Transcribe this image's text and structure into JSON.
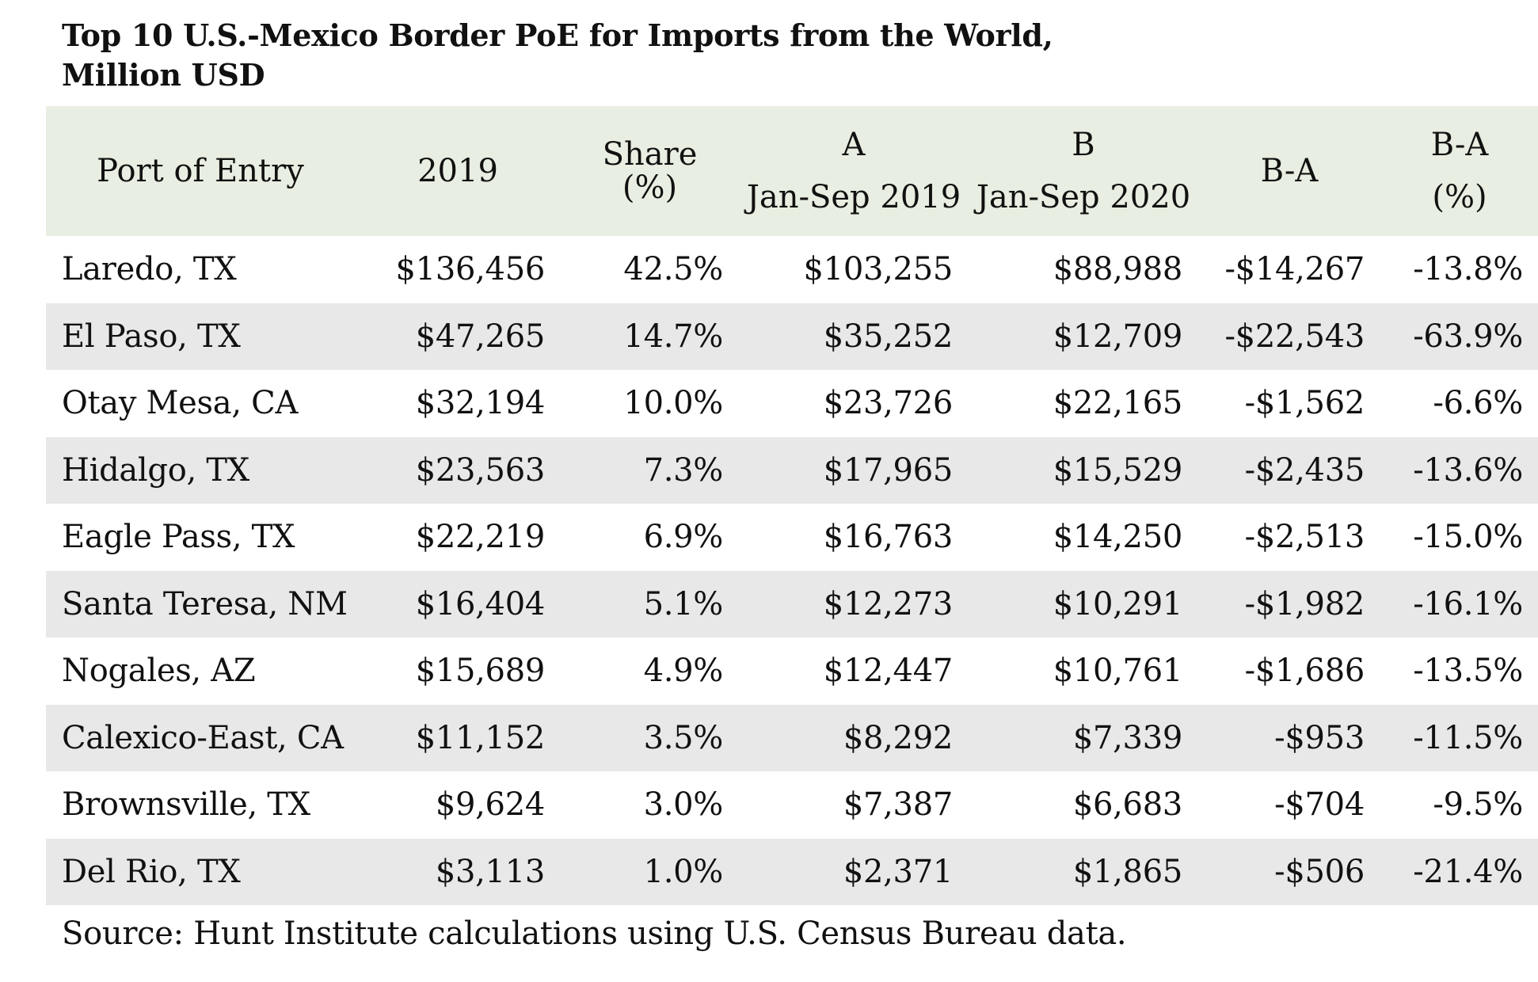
{
  "title": "Top 10 U.S.-Mexico Border PoE for Imports from the World, Million USD",
  "headers": {
    "port": "Port of Entry",
    "y2019": "2019",
    "share_line1": "Share",
    "share_line2": "(%)",
    "a_top": "A",
    "a_bottom": "Jan-Sep 2019",
    "b_top": "B",
    "b_bottom": "Jan-Sep 2020",
    "diff": "B-A",
    "pct_top": "B-A",
    "pct_bottom": "(%)"
  },
  "rows": [
    {
      "port": "Laredo, TX",
      "y2019": "$136,456",
      "share": "42.5%",
      "a": "$103,255",
      "b": "$88,988",
      "diff": "-$14,267",
      "pct": "-13.8%"
    },
    {
      "port": "El Paso, TX",
      "y2019": "$47,265",
      "share": "14.7%",
      "a": "$35,252",
      "b": "$12,709",
      "diff": "-$22,543",
      "pct": "-63.9%"
    },
    {
      "port": "Otay Mesa, CA",
      "y2019": "$32,194",
      "share": "10.0%",
      "a": "$23,726",
      "b": "$22,165",
      "diff": "-$1,562",
      "pct": "-6.6%"
    },
    {
      "port": "Hidalgo, TX",
      "y2019": "$23,563",
      "share": "7.3%",
      "a": "$17,965",
      "b": "$15,529",
      "diff": "-$2,435",
      "pct": "-13.6%"
    },
    {
      "port": "Eagle Pass, TX",
      "y2019": "$22,219",
      "share": "6.9%",
      "a": "$16,763",
      "b": "$14,250",
      "diff": "-$2,513",
      "pct": "-15.0%"
    },
    {
      "port": "Santa Teresa, NM",
      "y2019": "$16,404",
      "share": "5.1%",
      "a": "$12,273",
      "b": "$10,291",
      "diff": "-$1,982",
      "pct": "-16.1%"
    },
    {
      "port": "Nogales, AZ",
      "y2019": "$15,689",
      "share": "4.9%",
      "a": "$12,447",
      "b": "$10,761",
      "diff": "-$1,686",
      "pct": "-13.5%"
    },
    {
      "port": "Calexico-East, CA",
      "y2019": "$11,152",
      "share": "3.5%",
      "a": "$8,292",
      "b": "$7,339",
      "diff": "-$953",
      "pct": "-11.5%"
    },
    {
      "port": "Brownsville, TX",
      "y2019": "$9,624",
      "share": "3.0%",
      "a": "$7,387",
      "b": "$6,683",
      "diff": "-$704",
      "pct": "-9.5%"
    },
    {
      "port": "Del Rio, TX",
      "y2019": "$3,113",
      "share": "1.0%",
      "a": "$2,371",
      "b": "$1,865",
      "diff": "-$506",
      "pct": "-21.4%"
    }
  ],
  "source": "Source: Hunt Institute calculations using U.S. Census Bureau data.",
  "colors": {
    "header_bg": "#e8eee1",
    "stripe_bg": "#e8e8e8",
    "text": "#111111"
  },
  "chart_data": {
    "type": "table",
    "title": "Top 10 U.S.-Mexico Border PoE for Imports from the World, Million USD",
    "columns": [
      "Port of Entry",
      "2019",
      "Share (%)",
      "A Jan-Sep 2019",
      "B Jan-Sep 2020",
      "B-A",
      "B-A (%)"
    ],
    "rows": [
      [
        "Laredo, TX",
        136456,
        42.5,
        103255,
        88988,
        -14267,
        -13.8
      ],
      [
        "El Paso, TX",
        47265,
        14.7,
        35252,
        12709,
        -22543,
        -63.9
      ],
      [
        "Otay Mesa, CA",
        32194,
        10.0,
        23726,
        22165,
        -1562,
        -6.6
      ],
      [
        "Hidalgo, TX",
        23563,
        7.3,
        17965,
        15529,
        -2435,
        -13.6
      ],
      [
        "Eagle Pass, TX",
        22219,
        6.9,
        16763,
        14250,
        -2513,
        -15.0
      ],
      [
        "Santa Teresa, NM",
        16404,
        5.1,
        12273,
        10291,
        -1982,
        -16.1
      ],
      [
        "Nogales, AZ",
        15689,
        4.9,
        12447,
        10761,
        -1686,
        -13.5
      ],
      [
        "Calexico-East, CA",
        11152,
        3.5,
        8292,
        7339,
        -953,
        -11.5
      ],
      [
        "Brownsville, TX",
        9624,
        3.0,
        7387,
        6683,
        -704,
        -9.5
      ],
      [
        "Del Rio, TX",
        3113,
        1.0,
        2371,
        1865,
        -506,
        -21.4
      ]
    ]
  }
}
